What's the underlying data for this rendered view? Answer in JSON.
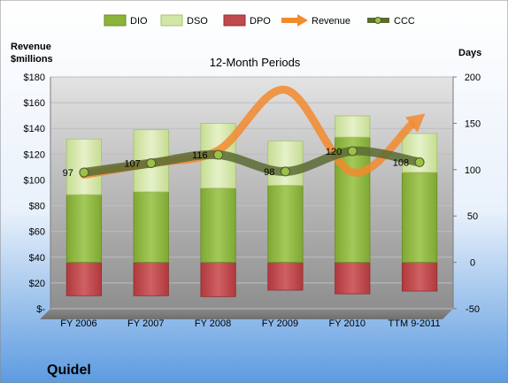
{
  "colors": {
    "dio": "#8cb43a",
    "dso": "#d2e6a6",
    "dpo": "#bf4b4f",
    "revenue": "#f28a2e",
    "ccc": "#5b6b34",
    "plot_bg": "#9d9d9d",
    "page_bg_top": "#ffffff",
    "page_bg_bottom": "#5c9be0"
  },
  "chart_data": {
    "type": "bar",
    "title": "12-Month Periods",
    "company": "Quidel",
    "left_axis_label": "Revenue $millions",
    "right_axis_label": "Days",
    "left_ticks": [
      "$-",
      "$20",
      "$40",
      "$60",
      "$80",
      "$100",
      "$120",
      "$140",
      "$160",
      "$180"
    ],
    "right_ticks": [
      "-50",
      "0",
      "50",
      "100",
      "150",
      "200"
    ],
    "left_ylim": [
      0,
      180
    ],
    "right_ylim": [
      -50,
      200
    ],
    "categories": [
      "FY 2006",
      "FY 2007",
      "FY 2008",
      "FY 2009",
      "FY 2010",
      "TTM 9-2011"
    ],
    "legend": [
      "DIO",
      "DSO",
      "DPO",
      "Revenue",
      "CCC"
    ],
    "series": [
      {
        "name": "DIO",
        "axis": "days",
        "values": [
          73,
          76,
          80,
          83,
          135,
          97
        ]
      },
      {
        "name": "DSO",
        "axis": "days",
        "values": [
          60,
          67,
          70,
          48,
          23,
          42
        ]
      },
      {
        "name": "DPO",
        "axis": "days",
        "values": [
          -36,
          -36,
          -37,
          -30,
          -34,
          -31
        ]
      },
      {
        "name": "Revenue",
        "axis": "revenue",
        "values": [
          104,
          113,
          123,
          170,
          106,
          148
        ]
      },
      {
        "name": "CCC",
        "axis": "days",
        "values": [
          97,
          107,
          116,
          98,
          120,
          108
        ]
      }
    ],
    "ccc_labels": [
      "97",
      "107",
      "116",
      "98",
      "120",
      "108"
    ]
  }
}
